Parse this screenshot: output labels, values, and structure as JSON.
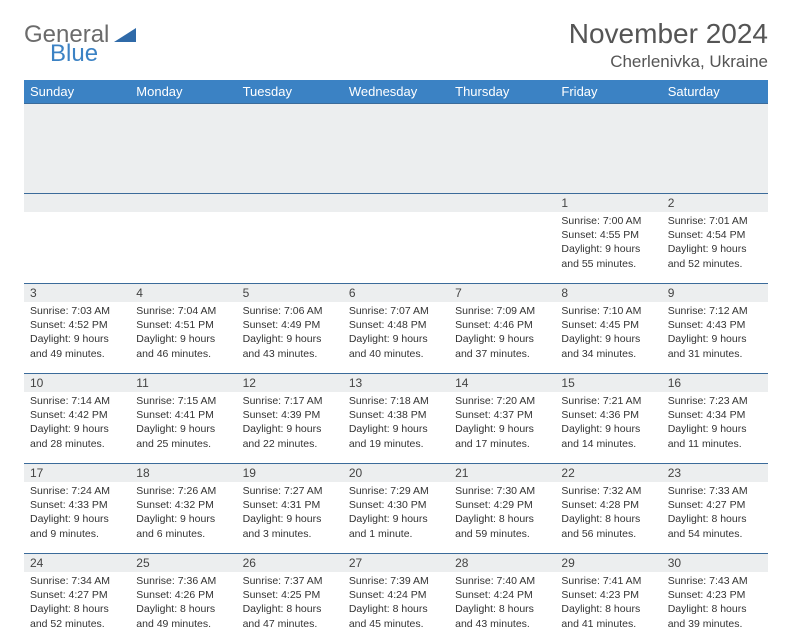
{
  "logo": {
    "general": "General",
    "blue": "Blue"
  },
  "title": "November 2024",
  "location": "Cherlenivka, Ukraine",
  "colors": {
    "header_bg": "#3b82c4",
    "header_fg": "#ffffff",
    "daynum_bg": "#eceeef",
    "rule": "#3b6b9a"
  },
  "weekdays": [
    "Sunday",
    "Monday",
    "Tuesday",
    "Wednesday",
    "Thursday",
    "Friday",
    "Saturday"
  ],
  "weeks": [
    [
      null,
      null,
      null,
      null,
      null,
      {
        "n": "1",
        "sr": "7:00 AM",
        "ss": "4:55 PM",
        "dl": "9 hours and 55 minutes."
      },
      {
        "n": "2",
        "sr": "7:01 AM",
        "ss": "4:54 PM",
        "dl": "9 hours and 52 minutes."
      }
    ],
    [
      {
        "n": "3",
        "sr": "7:03 AM",
        "ss": "4:52 PM",
        "dl": "9 hours and 49 minutes."
      },
      {
        "n": "4",
        "sr": "7:04 AM",
        "ss": "4:51 PM",
        "dl": "9 hours and 46 minutes."
      },
      {
        "n": "5",
        "sr": "7:06 AM",
        "ss": "4:49 PM",
        "dl": "9 hours and 43 minutes."
      },
      {
        "n": "6",
        "sr": "7:07 AM",
        "ss": "4:48 PM",
        "dl": "9 hours and 40 minutes."
      },
      {
        "n": "7",
        "sr": "7:09 AM",
        "ss": "4:46 PM",
        "dl": "9 hours and 37 minutes."
      },
      {
        "n": "8",
        "sr": "7:10 AM",
        "ss": "4:45 PM",
        "dl": "9 hours and 34 minutes."
      },
      {
        "n": "9",
        "sr": "7:12 AM",
        "ss": "4:43 PM",
        "dl": "9 hours and 31 minutes."
      }
    ],
    [
      {
        "n": "10",
        "sr": "7:14 AM",
        "ss": "4:42 PM",
        "dl": "9 hours and 28 minutes."
      },
      {
        "n": "11",
        "sr": "7:15 AM",
        "ss": "4:41 PM",
        "dl": "9 hours and 25 minutes."
      },
      {
        "n": "12",
        "sr": "7:17 AM",
        "ss": "4:39 PM",
        "dl": "9 hours and 22 minutes."
      },
      {
        "n": "13",
        "sr": "7:18 AM",
        "ss": "4:38 PM",
        "dl": "9 hours and 19 minutes."
      },
      {
        "n": "14",
        "sr": "7:20 AM",
        "ss": "4:37 PM",
        "dl": "9 hours and 17 minutes."
      },
      {
        "n": "15",
        "sr": "7:21 AM",
        "ss": "4:36 PM",
        "dl": "9 hours and 14 minutes."
      },
      {
        "n": "16",
        "sr": "7:23 AM",
        "ss": "4:34 PM",
        "dl": "9 hours and 11 minutes."
      }
    ],
    [
      {
        "n": "17",
        "sr": "7:24 AM",
        "ss": "4:33 PM",
        "dl": "9 hours and 9 minutes."
      },
      {
        "n": "18",
        "sr": "7:26 AM",
        "ss": "4:32 PM",
        "dl": "9 hours and 6 minutes."
      },
      {
        "n": "19",
        "sr": "7:27 AM",
        "ss": "4:31 PM",
        "dl": "9 hours and 3 minutes."
      },
      {
        "n": "20",
        "sr": "7:29 AM",
        "ss": "4:30 PM",
        "dl": "9 hours and 1 minute."
      },
      {
        "n": "21",
        "sr": "7:30 AM",
        "ss": "4:29 PM",
        "dl": "8 hours and 59 minutes."
      },
      {
        "n": "22",
        "sr": "7:32 AM",
        "ss": "4:28 PM",
        "dl": "8 hours and 56 minutes."
      },
      {
        "n": "23",
        "sr": "7:33 AM",
        "ss": "4:27 PM",
        "dl": "8 hours and 54 minutes."
      }
    ],
    [
      {
        "n": "24",
        "sr": "7:34 AM",
        "ss": "4:27 PM",
        "dl": "8 hours and 52 minutes."
      },
      {
        "n": "25",
        "sr": "7:36 AM",
        "ss": "4:26 PM",
        "dl": "8 hours and 49 minutes."
      },
      {
        "n": "26",
        "sr": "7:37 AM",
        "ss": "4:25 PM",
        "dl": "8 hours and 47 minutes."
      },
      {
        "n": "27",
        "sr": "7:39 AM",
        "ss": "4:24 PM",
        "dl": "8 hours and 45 minutes."
      },
      {
        "n": "28",
        "sr": "7:40 AM",
        "ss": "4:24 PM",
        "dl": "8 hours and 43 minutes."
      },
      {
        "n": "29",
        "sr": "7:41 AM",
        "ss": "4:23 PM",
        "dl": "8 hours and 41 minutes."
      },
      {
        "n": "30",
        "sr": "7:43 AM",
        "ss": "4:23 PM",
        "dl": "8 hours and 39 minutes."
      }
    ]
  ],
  "labels": {
    "sunrise": "Sunrise:",
    "sunset": "Sunset:",
    "daylight": "Daylight:"
  }
}
